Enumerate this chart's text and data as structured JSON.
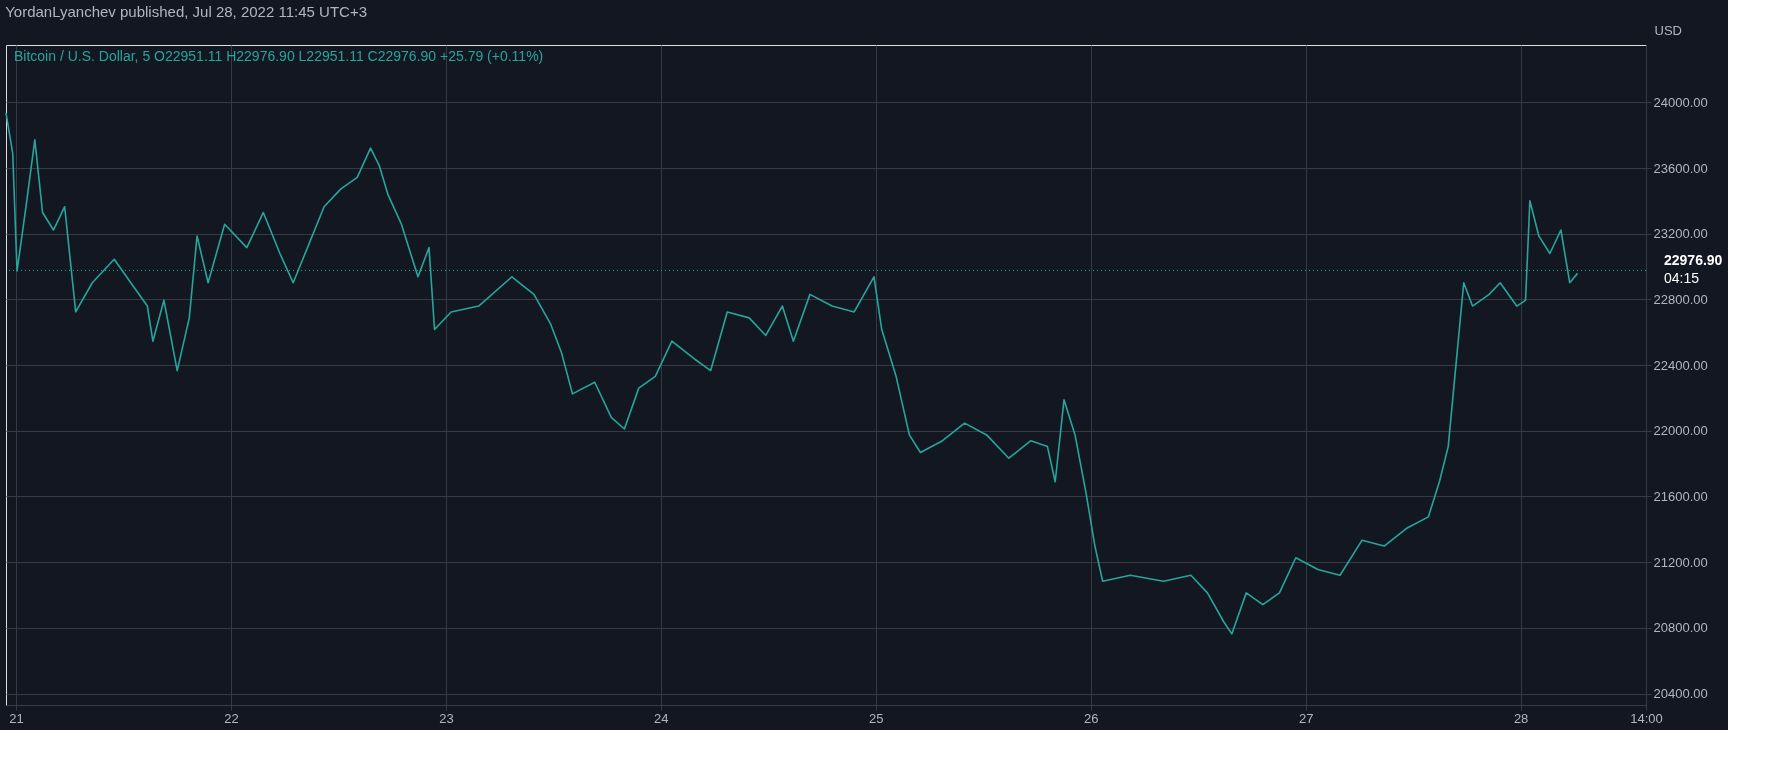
{
  "chart_data": {
    "type": "line",
    "title": "YordanLyanchev published, Jul 28, 2022 11:45 UTC+3",
    "subtitle": "Bitcoin / U.S. Dollar, 5   O22951.11  H22976.90  L22951.11  C22976.90  +25.79 (+0.11%)",
    "ylabel": "USD",
    "x": [
      "2022-07-20T22:53",
      "2022-07-20T23:38",
      "2022-07-21T00:07",
      "2022-07-21T01:07",
      "2022-07-21T02:06",
      "2022-07-21T02:58",
      "2022-07-21T04:11",
      "2022-07-21T05:26",
      "2022-07-21T06:40",
      "2022-07-21T08:31",
      "2022-07-21T10:58",
      "2022-07-21T12:49",
      "2022-07-21T14:40",
      "2022-07-21T15:17",
      "2022-07-21T16:31",
      "2022-07-21T18:00",
      "2022-07-21T19:21",
      "2022-07-21T20:13",
      "2022-07-21T21:27",
      "2022-07-21T23:18",
      "2022-07-22T01:46",
      "2022-07-22T03:37",
      "2022-07-22T05:28",
      "2022-07-22T06:57",
      "2022-07-22T08:33",
      "2022-07-22T10:24",
      "2022-07-22T12:15",
      "2022-07-22T14:06",
      "2022-07-22T15:35",
      "2022-07-22T16:34",
      "2022-07-22T17:33",
      "2022-07-22T19:02",
      "2022-07-22T20:53",
      "2022-07-22T22:07",
      "2022-07-22T22:44",
      "2022-07-23T00:35",
      "2022-07-23T03:40",
      "2022-07-23T07:22",
      "2022-07-23T09:50",
      "2022-07-23T11:41",
      "2022-07-23T12:55",
      "2022-07-23T14:08",
      "2022-07-23T16:37",
      "2022-07-23T18:28",
      "2022-07-23T19:56",
      "2022-07-23T21:32",
      "2022-07-23T23:23",
      "2022-07-24T01:14",
      "2022-07-24T03:43",
      "2022-07-24T05:34",
      "2022-07-24T07:25",
      "2022-07-24T09:52",
      "2022-07-24T11:43",
      "2022-07-24T13:34",
      "2022-07-24T14:48",
      "2022-07-24T16:39",
      "2022-07-24T19:07",
      "2022-07-24T21:35",
      "2022-07-24T23:48",
      "2022-07-25T00:40",
      "2022-07-25T02:16",
      "2022-07-25T03:45",
      "2022-07-25T04:59",
      "2022-07-25T07:27",
      "2022-07-25T09:55",
      "2022-07-25T12:23",
      "2022-07-25T14:51",
      "2022-07-25T17:19",
      "2022-07-25T19:10",
      "2022-07-25T20:02",
      "2022-07-25T21:01",
      "2022-07-25T22:15",
      "2022-07-25T23:29",
      "2022-07-26T00:28",
      "2022-07-26T01:20",
      "2022-07-26T04:25",
      "2022-07-26T08:07",
      "2022-07-26T11:11",
      "2022-07-26T13:02",
      "2022-07-26T14:53",
      "2022-07-26T15:45",
      "2022-07-26T17:22",
      "2022-07-26T19:13",
      "2022-07-26T21:04",
      "2022-07-26T22:54",
      "2022-07-27T01:22",
      "2022-07-27T03:50",
      "2022-07-27T06:18",
      "2022-07-27T08:46",
      "2022-07-27T11:14",
      "2022-07-27T13:42",
      "2022-07-27T14:56",
      "2022-07-27T15:55",
      "2022-07-27T16:47",
      "2022-07-27T17:39",
      "2022-07-27T18:38",
      "2022-07-27T20:29",
      "2022-07-27T21:43",
      "2022-07-27T23:34",
      "2022-07-28T00:33",
      "2022-07-28T01:02",
      "2022-07-28T02:02",
      "2022-07-28T03:16",
      "2022-07-28T04:30",
      "2022-07-28T05:29",
      "2022-07-28T06:21"
    ],
    "series": [
      {
        "color": "#26a69a",
        "values": [
          23936,
          23690,
          22973,
          23365,
          23772,
          23330,
          23223,
          23365,
          22724,
          22902,
          23045,
          22902,
          22760,
          22546,
          22795,
          22367,
          22688,
          23187,
          22902,
          23258,
          23116,
          23330,
          23080,
          22902,
          23116,
          23365,
          23472,
          23544,
          23722,
          23615,
          23437,
          23258,
          22938,
          23116,
          22617,
          22724,
          22760,
          22938,
          22831,
          22652,
          22474,
          22225,
          22296,
          22082,
          22011,
          22260,
          22332,
          22546,
          22439,
          22367,
          22724,
          22688,
          22581,
          22760,
          22546,
          22831,
          22760,
          22724,
          22938,
          22617,
          22332,
          21975,
          21868,
          21940,
          22047,
          21975,
          21833,
          21940,
          21904,
          21690,
          22189,
          21975,
          21619,
          21298,
          21084,
          21120,
          21084,
          21120,
          21013,
          20834,
          20763,
          21013,
          20941,
          21013,
          21227,
          21155,
          21120,
          21334,
          21298,
          21405,
          21476,
          21690,
          21904,
          22403,
          22902,
          22760,
          22831,
          22902,
          22760,
          22795,
          23401,
          23187,
          23080,
          23223,
          22902,
          22959
        ]
      }
    ],
    "xlim": [
      "2022-07-20T22:53",
      "2022-07-28T14:00"
    ],
    "xticks": [
      {
        "value": "2022-07-21",
        "label": "21"
      },
      {
        "value": "2022-07-22",
        "label": "22"
      },
      {
        "value": "2022-07-23",
        "label": "23"
      },
      {
        "value": "2022-07-24",
        "label": "24"
      },
      {
        "value": "2022-07-25",
        "label": "25"
      },
      {
        "value": "2022-07-26",
        "label": "26"
      },
      {
        "value": "2022-07-27",
        "label": "27"
      },
      {
        "value": "2022-07-28",
        "label": "28"
      },
      {
        "value": "2022-07-28T14:00",
        "label": "14:00"
      }
    ],
    "ylim": [
      20330,
      24350
    ],
    "yticks": [
      {
        "value": 20400,
        "label": "20400.00"
      },
      {
        "value": 20800,
        "label": "20800.00"
      },
      {
        "value": 21200,
        "label": "21200.00"
      },
      {
        "value": 21600,
        "label": "21600.00"
      },
      {
        "value": 22000,
        "label": "22000.00"
      },
      {
        "value": 22400,
        "label": "22400.00"
      },
      {
        "value": 22800,
        "label": "22800.00"
      },
      {
        "value": 23200,
        "label": "23200.00"
      },
      {
        "value": 23600,
        "label": "23600.00"
      },
      {
        "value": 24000,
        "label": "24000.00"
      }
    ],
    "ref_lines": [
      {
        "axis": "y",
        "value": 22976.9,
        "label": "22976.90",
        "color": "#26a69a",
        "line_style": "dotted"
      }
    ],
    "annotations": [
      "04:15"
    ],
    "grid": true,
    "marker": "none",
    "line_style": "solid"
  }
}
